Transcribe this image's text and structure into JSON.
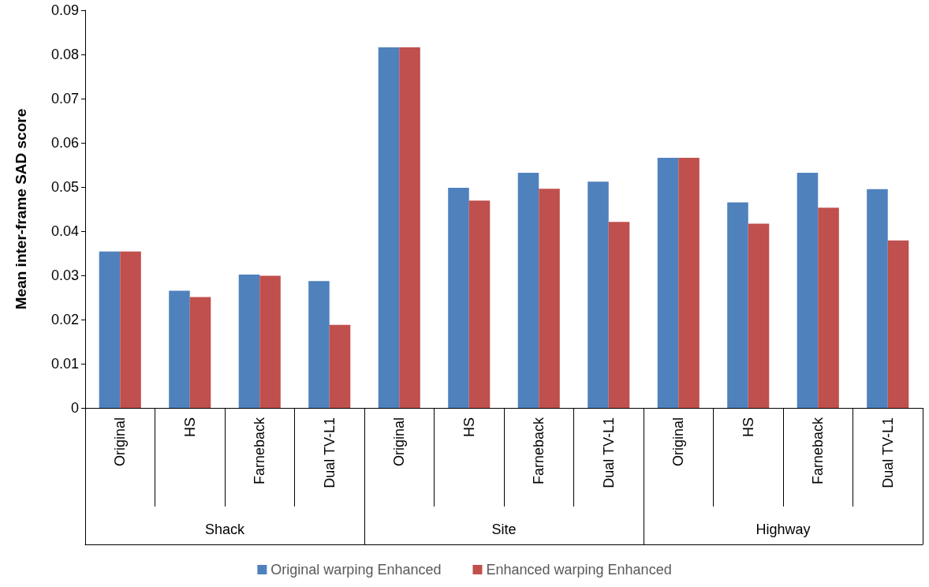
{
  "chart_data": {
    "type": "bar",
    "ylabel": "Mean inter-frame SAD score",
    "categories": [
      "Original",
      "HS",
      "Farneback",
      "Dual TV-L1",
      "Original",
      "HS",
      "Farneback",
      "Dual TV-L1",
      "Original",
      "HS",
      "Farneback",
      "Dual TV-L1"
    ],
    "annotations": [
      "Shack",
      "Site",
      "Highway"
    ],
    "series": [
      {
        "name": "Original warping Enhanced",
        "color": "#4f81bd",
        "values": [
          0.0354,
          0.0265,
          0.0302,
          0.0287,
          0.0816,
          0.0498,
          0.0532,
          0.0512,
          0.0566,
          0.0465,
          0.0532,
          0.0495
        ]
      },
      {
        "name": "Enhanced warping Enhanced",
        "color": "#c0504d",
        "values": [
          0.0354,
          0.0251,
          0.0299,
          0.0188,
          0.0816,
          0.0469,
          0.0496,
          0.0421,
          0.0566,
          0.0417,
          0.0453,
          0.0379
        ]
      }
    ],
    "ylim": [
      0,
      0.09
    ],
    "yticks": [
      0,
      0.01,
      0.02,
      0.03,
      0.04,
      0.05,
      0.06,
      0.07,
      0.08,
      0.09
    ],
    "grid": false,
    "legend": "bottom"
  }
}
